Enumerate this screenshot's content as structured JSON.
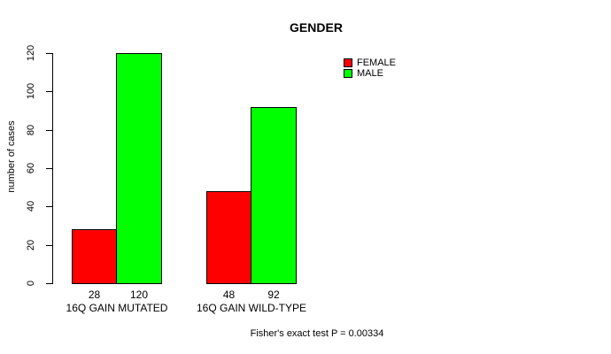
{
  "page": {
    "background": "#ffffff"
  },
  "chart_data": {
    "type": "bar",
    "title": "GENDER",
    "ylabel": "number of cases",
    "xlabel": "",
    "ylim": [
      0,
      120
    ],
    "yticks": [
      0,
      20,
      40,
      60,
      80,
      100,
      120
    ],
    "categories": [
      "16Q GAIN MUTATED",
      "16Q GAIN WILD-TYPE"
    ],
    "series": [
      {
        "name": "FEMALE",
        "color": "#ff0000",
        "values": [
          28,
          48
        ]
      },
      {
        "name": "MALE",
        "color": "#00ff00",
        "values": [
          120,
          92
        ]
      }
    ],
    "bar_value_labels": [
      [
        "28",
        "120"
      ],
      [
        "48",
        "92"
      ]
    ],
    "annotation": "Fisher's exact test P = 0.00334",
    "legend_position": "top-right",
    "grid": false,
    "bar_border_color": "#000000",
    "axis_color": "#000000",
    "text_color": "#000000"
  }
}
